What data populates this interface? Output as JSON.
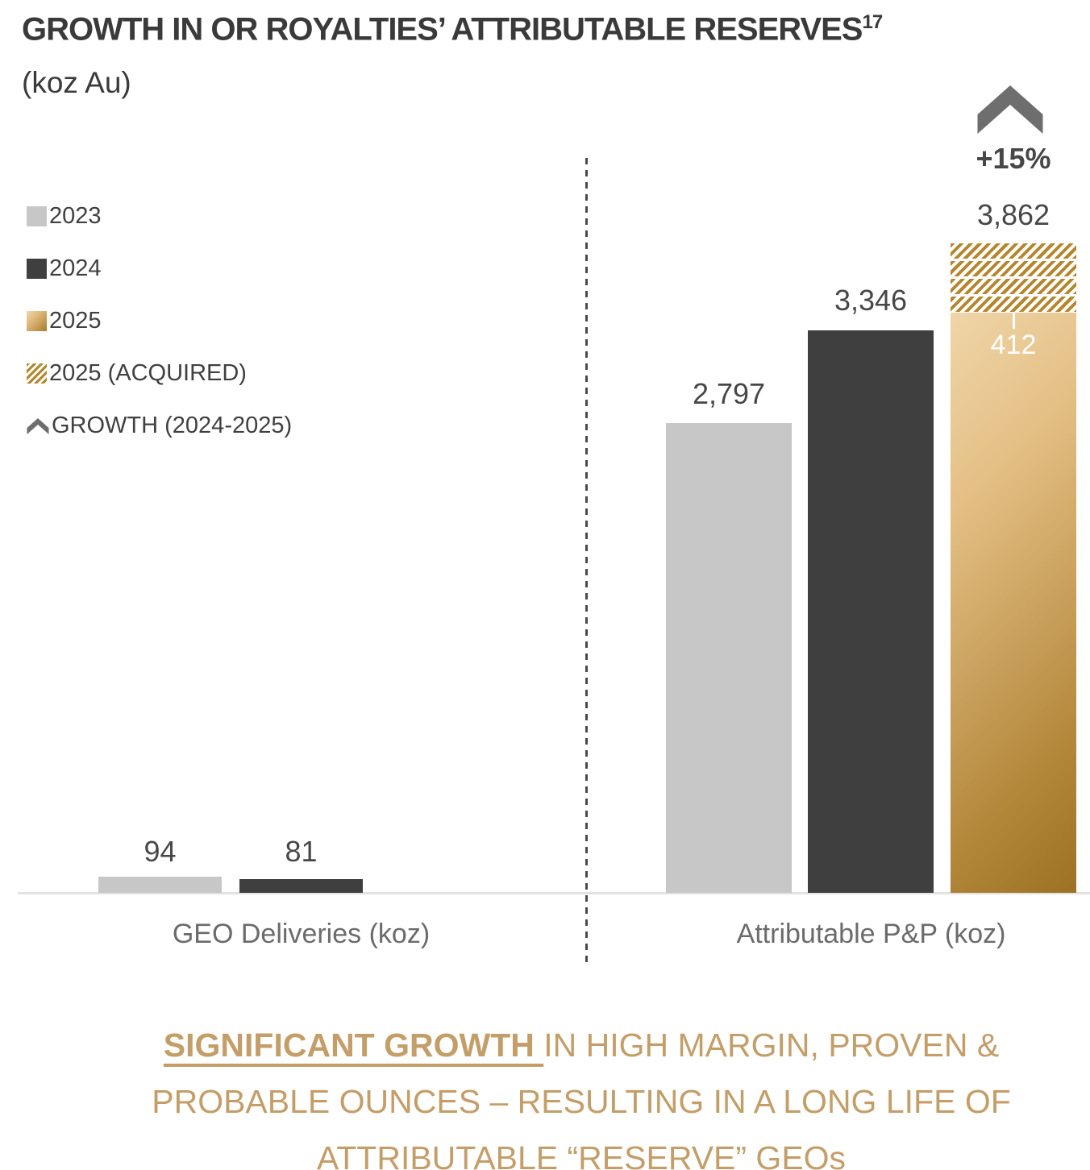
{
  "title": {
    "text": "GROWTH IN OR ROYALTIES’ ATTRIBUTABLE RESERVES",
    "superscript": "17",
    "unit": "(koz Au)"
  },
  "legend": {
    "items": [
      {
        "label": "2023",
        "swatch": "gray-square"
      },
      {
        "label": "2024",
        "swatch": "dark-square"
      },
      {
        "label": "2025",
        "swatch": "gold-gradient-square"
      },
      {
        "label": "2025 (ACQUIRED)",
        "swatch": "gold-hatched-square"
      },
      {
        "label": "GROWTH (2024-2025)",
        "swatch": "chevron-up"
      }
    ]
  },
  "chart_data": {
    "type": "bar",
    "title": "GROWTH IN OR ROYALTIES’ ATTRIBUTABLE RESERVES (17)",
    "ylabel": "koz Au",
    "grid": false,
    "legend_position": "top-left",
    "categories": [
      "GEO Deliveries (koz)",
      "Attributable P&P (koz)"
    ],
    "series": [
      {
        "name": "2023",
        "values": [
          94,
          2797
        ],
        "color": "#c7c7c7"
      },
      {
        "name": "2024",
        "values": [
          81,
          3346
        ],
        "color": "#3f3f3f"
      },
      {
        "name": "2025",
        "values": [
          null,
          3862
        ],
        "color": "gold-gradient"
      }
    ],
    "acquired_2025": {
      "category": "Attributable P&P (koz)",
      "value": 412,
      "style": "gold-hatched"
    },
    "growth_2024_2025": "+15%",
    "ylim": [
      0,
      4200
    ],
    "pixels_per_unit": 0.2086
  },
  "labels": {
    "geo_2023": "94",
    "geo_2024": "81",
    "pp_2023": "2,797",
    "pp_2024": "3,346",
    "pp_2025": "3,862",
    "pp_2025_acquired": "412",
    "growth": "+15%"
  },
  "categories": {
    "group1": "GEO Deliveries (koz)",
    "group2": "Attributable P&P (koz)"
  },
  "footer": {
    "line1_bold": "SIGNIFICANT GROWTH ",
    "line1_rest": "IN HIGH MARGIN, PROVEN &",
    "line2": "PROBABLE OUNCES – RESULTING IN A LONG LIFE OF",
    "line3": "ATTRIBUTABLE “RESERVE” GEOs"
  },
  "colors": {
    "bar_2023": "#c7c7c7",
    "bar_2024": "#3f3f3f",
    "bar_2025_light": "#f3ddb4",
    "bar_2025_dark": "#9c7124",
    "hatch_stripe": "#b5862e",
    "growth_arrow": "#6e6e6e",
    "footer_text": "#c49e69",
    "axis_line": "#e2e2e2",
    "text_dark": "#3f3f3f"
  }
}
